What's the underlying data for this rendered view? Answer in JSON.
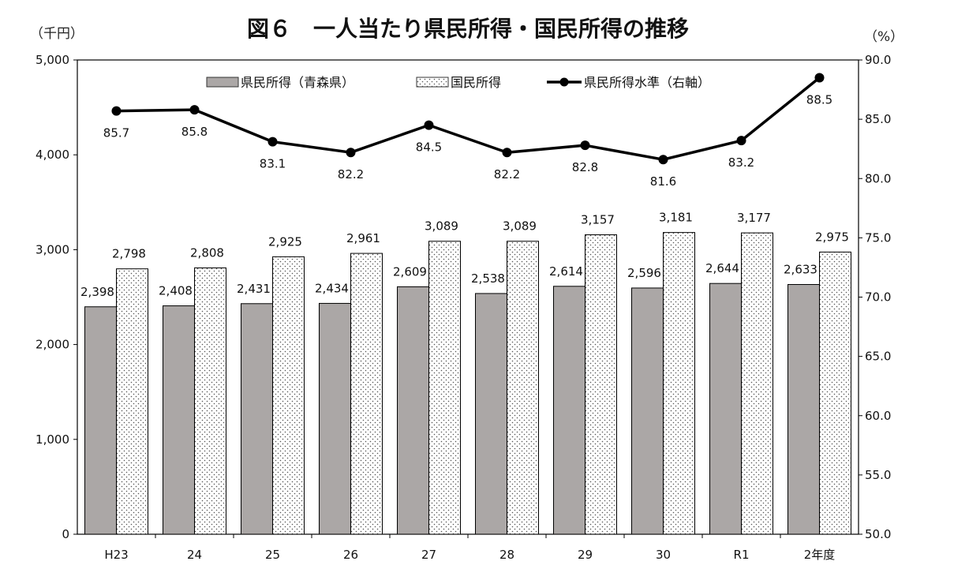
{
  "chart_data": {
    "type": "bar",
    "title": "図６　一人当たり県民所得・国民所得の推移",
    "left_unit": "（千円）",
    "right_unit": "（%）",
    "categories": [
      "H23",
      "24",
      "25",
      "26",
      "27",
      "28",
      "29",
      "30",
      "R1",
      "2年度"
    ],
    "series": [
      {
        "name": "県民所得（青森県）",
        "kind": "bar",
        "axis": "left",
        "color": "#aba7a6",
        "values": [
          2398,
          2408,
          2431,
          2434,
          2609,
          2538,
          2614,
          2596,
          2644,
          2633
        ],
        "labels": [
          "2,398",
          "2,408",
          "2,431",
          "2,434",
          "2,609",
          "2,538",
          "2,614",
          "2,596",
          "2,644",
          "2,633"
        ]
      },
      {
        "name": "国民所得",
        "kind": "bar",
        "axis": "left",
        "pattern": "dots",
        "values": [
          2798,
          2808,
          2925,
          2961,
          3089,
          3089,
          3157,
          3181,
          3177,
          2975
        ],
        "labels": [
          "2,798",
          "2,808",
          "2,925",
          "2,961",
          "3,089",
          "3,089",
          "3,157",
          "3,181",
          "3,177",
          "2,975"
        ]
      },
      {
        "name": "県民所得水準（右軸）",
        "kind": "line",
        "axis": "right",
        "color": "#000000",
        "values": [
          85.7,
          85.8,
          83.1,
          82.2,
          84.5,
          82.2,
          82.8,
          81.6,
          83.2,
          88.5
        ],
        "labels": [
          "85.7",
          "85.8",
          "83.1",
          "82.2",
          "84.5",
          "82.2",
          "82.8",
          "81.6",
          "83.2",
          "88.5"
        ]
      }
    ],
    "y_left": {
      "min": 0,
      "max": 5000,
      "ticks": [
        "0",
        "1,000",
        "2,000",
        "3,000",
        "4,000",
        "5,000"
      ],
      "tick_values": [
        0,
        1000,
        2000,
        3000,
        4000,
        5000
      ]
    },
    "y_right": {
      "min": 50,
      "max": 90,
      "ticks": [
        "50.0",
        "55.0",
        "60.0",
        "65.0",
        "70.0",
        "75.0",
        "80.0",
        "85.0",
        "90.0"
      ],
      "tick_values": [
        50,
        55,
        60,
        65,
        70,
        75,
        80,
        85,
        90
      ]
    },
    "grid": false,
    "legend": "top-center"
  }
}
